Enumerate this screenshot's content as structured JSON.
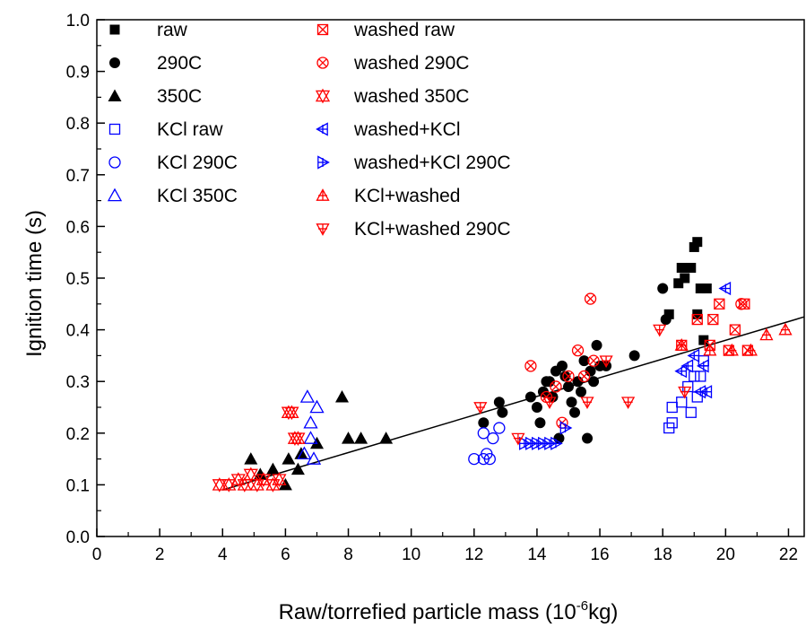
{
  "chart_data": {
    "type": "scatter",
    "xlabel": "Raw/torrefied particle mass (10",
    "xlabel_sup": "-6",
    "xlabel_end": "kg)",
    "ylabel": "Ignition time (s)",
    "xlim": [
      0,
      22.5
    ],
    "ylim": [
      0,
      1.0
    ],
    "x_ticks": [
      "0",
      "2",
      "4",
      "6",
      "8",
      "10",
      "12",
      "14",
      "16",
      "18",
      "20",
      "22"
    ],
    "y_ticks": [
      "0.0",
      "0.1",
      "0.2",
      "0.3",
      "0.4",
      "0.5",
      "0.6",
      "0.7",
      "0.8",
      "0.9",
      "1.0"
    ],
    "grid": false,
    "legend_position": "top-left",
    "fit_line": {
      "x": [
        4.0,
        22.5
      ],
      "y": [
        0.09,
        0.425
      ]
    },
    "series": [
      {
        "name": "raw",
        "marker": "square-filled",
        "color": "#000000",
        "points": [
          [
            18.2,
            0.43
          ],
          [
            18.5,
            0.49
          ],
          [
            18.6,
            0.52
          ],
          [
            18.7,
            0.5
          ],
          [
            18.9,
            0.52
          ],
          [
            19.0,
            0.56
          ],
          [
            19.1,
            0.57
          ],
          [
            19.1,
            0.43
          ],
          [
            19.2,
            0.48
          ],
          [
            19.3,
            0.38
          ],
          [
            19.4,
            0.48
          ]
        ]
      },
      {
        "name": "290C",
        "marker": "circle-filled",
        "color": "#000000",
        "points": [
          [
            12.3,
            0.22
          ],
          [
            12.8,
            0.26
          ],
          [
            12.9,
            0.24
          ],
          [
            13.8,
            0.27
          ],
          [
            14.0,
            0.25
          ],
          [
            14.1,
            0.22
          ],
          [
            14.2,
            0.28
          ],
          [
            14.3,
            0.3
          ],
          [
            14.4,
            0.3
          ],
          [
            14.5,
            0.27
          ],
          [
            14.6,
            0.32
          ],
          [
            14.7,
            0.19
          ],
          [
            14.8,
            0.33
          ],
          [
            14.9,
            0.31
          ],
          [
            15.0,
            0.29
          ],
          [
            15.1,
            0.26
          ],
          [
            15.2,
            0.24
          ],
          [
            15.3,
            0.3
          ],
          [
            15.4,
            0.28
          ],
          [
            15.5,
            0.34
          ],
          [
            15.6,
            0.19
          ],
          [
            15.7,
            0.32
          ],
          [
            15.8,
            0.3
          ],
          [
            15.9,
            0.37
          ],
          [
            16.0,
            0.33
          ],
          [
            16.2,
            0.33
          ],
          [
            17.1,
            0.35
          ],
          [
            18.0,
            0.48
          ],
          [
            18.1,
            0.42
          ]
        ]
      },
      {
        "name": "350C",
        "marker": "triangle-filled",
        "color": "#000000",
        "points": [
          [
            4.9,
            0.15
          ],
          [
            5.2,
            0.12
          ],
          [
            5.6,
            0.13
          ],
          [
            6.0,
            0.1
          ],
          [
            6.1,
            0.15
          ],
          [
            6.4,
            0.13
          ],
          [
            6.5,
            0.16
          ],
          [
            7.0,
            0.18
          ],
          [
            7.8,
            0.27
          ],
          [
            8.0,
            0.19
          ],
          [
            8.4,
            0.19
          ],
          [
            9.2,
            0.19
          ]
        ]
      },
      {
        "name": "KCl raw",
        "marker": "square-open",
        "color": "#0000ff",
        "points": [
          [
            18.2,
            0.21
          ],
          [
            18.3,
            0.22
          ],
          [
            18.3,
            0.25
          ],
          [
            18.6,
            0.26
          ],
          [
            18.8,
            0.29
          ],
          [
            18.9,
            0.24
          ],
          [
            19.0,
            0.31
          ],
          [
            19.1,
            0.27
          ],
          [
            19.2,
            0.31
          ],
          [
            19.3,
            0.34
          ]
        ]
      },
      {
        "name": "KCl 290C",
        "marker": "circle-open",
        "color": "#0000ff",
        "points": [
          [
            12.0,
            0.15
          ],
          [
            12.3,
            0.15
          ],
          [
            12.4,
            0.16
          ],
          [
            12.5,
            0.15
          ],
          [
            12.6,
            0.19
          ],
          [
            12.8,
            0.21
          ],
          [
            12.3,
            0.2
          ]
        ]
      },
      {
        "name": "KCl 350C",
        "marker": "triangle-open",
        "color": "#0000ff",
        "points": [
          [
            6.6,
            0.16
          ],
          [
            6.7,
            0.27
          ],
          [
            6.8,
            0.22
          ],
          [
            6.8,
            0.19
          ],
          [
            6.9,
            0.15
          ],
          [
            7.0,
            0.25
          ]
        ]
      },
      {
        "name": "washed raw",
        "marker": "square-x",
        "color": "#ff0000",
        "points": [
          [
            18.6,
            0.37
          ],
          [
            19.1,
            0.42
          ],
          [
            19.5,
            0.37
          ],
          [
            19.6,
            0.42
          ],
          [
            19.8,
            0.45
          ],
          [
            20.1,
            0.36
          ],
          [
            20.3,
            0.4
          ],
          [
            20.6,
            0.45
          ],
          [
            20.7,
            0.36
          ]
        ]
      },
      {
        "name": "washed 290C",
        "marker": "circle-x",
        "color": "#ff0000",
        "points": [
          [
            13.8,
            0.33
          ],
          [
            14.3,
            0.27
          ],
          [
            14.6,
            0.29
          ],
          [
            14.8,
            0.22
          ],
          [
            15.0,
            0.31
          ],
          [
            15.3,
            0.36
          ],
          [
            15.5,
            0.31
          ],
          [
            15.7,
            0.46
          ],
          [
            15.8,
            0.34
          ],
          [
            20.5,
            0.45
          ]
        ]
      },
      {
        "name": "washed 350C",
        "marker": "star-open",
        "color": "#ff0000",
        "points": [
          [
            3.9,
            0.1
          ],
          [
            4.2,
            0.1
          ],
          [
            4.5,
            0.11
          ],
          [
            4.7,
            0.1
          ],
          [
            4.9,
            0.12
          ],
          [
            5.1,
            0.1
          ],
          [
            5.3,
            0.11
          ],
          [
            5.6,
            0.1
          ],
          [
            5.8,
            0.11
          ],
          [
            6.1,
            0.24
          ],
          [
            6.2,
            0.24
          ],
          [
            6.3,
            0.19
          ],
          [
            6.4,
            0.19
          ]
        ]
      },
      {
        "name": "washed+KCl",
        "marker": "triangle-left-cross",
        "color": "#0000ff",
        "points": [
          [
            18.6,
            0.32
          ],
          [
            18.8,
            0.33
          ],
          [
            19.0,
            0.35
          ],
          [
            19.2,
            0.28
          ],
          [
            19.3,
            0.33
          ],
          [
            19.4,
            0.28
          ],
          [
            20.0,
            0.48
          ]
        ]
      },
      {
        "name": "washed+KCl 290C",
        "marker": "triangle-right-cross",
        "color": "#0000ff",
        "points": [
          [
            13.6,
            0.18
          ],
          [
            13.8,
            0.18
          ],
          [
            14.0,
            0.18
          ],
          [
            14.2,
            0.18
          ],
          [
            14.4,
            0.18
          ],
          [
            14.6,
            0.18
          ],
          [
            14.9,
            0.21
          ]
        ]
      },
      {
        "name": "KCl+washed",
        "marker": "triangle-up-cross",
        "color": "#ff0000",
        "points": [
          [
            18.6,
            0.37
          ],
          [
            19.5,
            0.36
          ],
          [
            20.2,
            0.36
          ],
          [
            20.8,
            0.36
          ],
          [
            21.3,
            0.39
          ],
          [
            21.9,
            0.4
          ]
        ]
      },
      {
        "name": "KCl+washed 290C",
        "marker": "triangle-down-cross",
        "color": "#ff0000",
        "points": [
          [
            12.2,
            0.25
          ],
          [
            13.4,
            0.19
          ],
          [
            14.4,
            0.26
          ],
          [
            15.6,
            0.26
          ],
          [
            16.2,
            0.34
          ],
          [
            16.9,
            0.26
          ],
          [
            17.9,
            0.4
          ],
          [
            18.7,
            0.28
          ]
        ]
      }
    ]
  }
}
